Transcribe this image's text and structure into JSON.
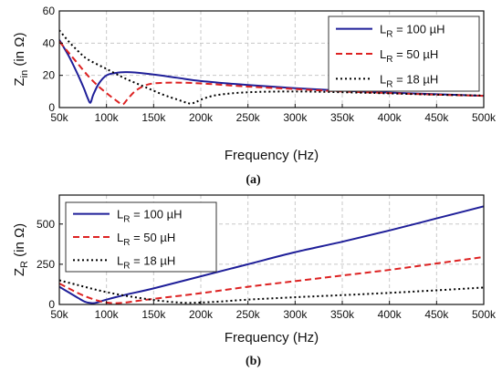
{
  "chart_data": [
    {
      "type": "line",
      "caption": "(a)",
      "xlabel": "Frequency (Hz)",
      "ylabel": {
        "main": "Z",
        "sub": "in",
        "rest": " (in Ω)"
      },
      "xlim": [
        50000,
        500000
      ],
      "ylim": [
        0,
        60
      ],
      "xticks": [
        50000,
        100000,
        150000,
        200000,
        250000,
        300000,
        350000,
        400000,
        450000,
        500000
      ],
      "xtick_labels": [
        "50k",
        "100k",
        "150k",
        "200k",
        "250k",
        "300k",
        "350k",
        "400k",
        "450k",
        "500k"
      ],
      "yticks": [
        0,
        20,
        40,
        60
      ],
      "ytick_labels": [
        "0",
        "20",
        "40",
        "60"
      ],
      "grid": true,
      "legend_position": "top-right",
      "series": [
        {
          "name": "L_R = 100 µH",
          "label_main": "L",
          "label_sub": "R",
          "label_rest": " = 100 µH",
          "color": "#1f1f99",
          "dash": "solid",
          "x": [
            50000,
            60000,
            70000,
            76000,
            80000,
            83000,
            86000,
            92000,
            100000,
            110000,
            120000,
            130000,
            150000,
            175000,
            200000,
            250000,
            300000,
            350000,
            400000,
            450000,
            500000
          ],
          "y": [
            42,
            32,
            20,
            12,
            6,
            3,
            8,
            15,
            20,
            21.5,
            22,
            21.8,
            20.5,
            18.5,
            16.5,
            14,
            12,
            10.5,
            9.3,
            8.3,
            7.3
          ]
        },
        {
          "name": "L_R = 50 µH",
          "label_main": "L",
          "label_sub": "R",
          "label_rest": " = 50 µH",
          "color": "#dd2222",
          "dash": "dashed",
          "x": [
            50000,
            60000,
            70000,
            80000,
            90000,
            100000,
            110000,
            117000,
            122000,
            130000,
            140000,
            150000,
            170000,
            200000,
            250000,
            300000,
            350000,
            400000,
            450000,
            500000
          ],
          "y": [
            41,
            34,
            27,
            20,
            14,
            9,
            4.5,
            2,
            5,
            10,
            13.5,
            15,
            15.5,
            15,
            13,
            11.5,
            10,
            9,
            8,
            7.3
          ]
        },
        {
          "name": "L_R = 18 µH",
          "label_main": "L",
          "label_sub": "R",
          "label_rest": " = 18 µH",
          "color": "#000000",
          "dash": "dotted",
          "x": [
            50000,
            60000,
            70000,
            80000,
            100000,
            120000,
            140000,
            160000,
            175000,
            185000,
            190000,
            195000,
            205000,
            220000,
            250000,
            300000,
            350000,
            400000,
            450000,
            500000
          ],
          "y": [
            48,
            41,
            35,
            30,
            24,
            18,
            13,
            8,
            5,
            3,
            2.5,
            3.5,
            6,
            8,
            9.5,
            10,
            9.5,
            8.8,
            8,
            7.5
          ]
        }
      ]
    },
    {
      "type": "line",
      "caption": "(b)",
      "xlabel": "Frequency (Hz)",
      "ylabel": {
        "main": "Z",
        "sub": "R",
        "rest": " (in Ω)"
      },
      "xlim": [
        50000,
        500000
      ],
      "ylim": [
        0,
        680
      ],
      "xticks": [
        50000,
        100000,
        150000,
        200000,
        250000,
        300000,
        350000,
        400000,
        450000,
        500000
      ],
      "xtick_labels": [
        "50k",
        "100k",
        "150k",
        "200k",
        "250k",
        "300k",
        "350k",
        "400k",
        "450k",
        "500k"
      ],
      "yticks": [
        0,
        250,
        500
      ],
      "ytick_labels": [
        "0",
        "250",
        "500"
      ],
      "grid": true,
      "legend_position": "top-left",
      "series": [
        {
          "name": "L_R = 100 µH",
          "label_main": "L",
          "label_sub": "R",
          "label_rest": " = 100 µH",
          "color": "#1f1f99",
          "dash": "solid",
          "x": [
            50000,
            60000,
            70000,
            78000,
            85000,
            90000,
            100000,
            120000,
            150000,
            200000,
            250000,
            300000,
            350000,
            400000,
            450000,
            500000
          ],
          "y": [
            110,
            75,
            40,
            15,
            8,
            12,
            30,
            60,
            100,
            175,
            250,
            325,
            390,
            460,
            535,
            610
          ]
        },
        {
          "name": "L_R = 50 µH",
          "label_main": "L",
          "label_sub": "R",
          "label_rest": " = 50 µH",
          "color": "#dd2222",
          "dash": "dashed",
          "x": [
            50000,
            60000,
            70000,
            80000,
            90000,
            100000,
            110000,
            120000,
            130000,
            150000,
            200000,
            250000,
            300000,
            350000,
            400000,
            450000,
            500000
          ],
          "y": [
            130,
            100,
            70,
            45,
            25,
            12,
            8,
            12,
            20,
            35,
            70,
            110,
            145,
            180,
            215,
            255,
            295
          ]
        },
        {
          "name": "L_R = 18 µH",
          "label_main": "L",
          "label_sub": "R",
          "label_rest": " = 18 µH",
          "color": "#000000",
          "dash": "dotted",
          "x": [
            50000,
            70000,
            90000,
            110000,
            130000,
            150000,
            170000,
            185000,
            200000,
            220000,
            250000,
            300000,
            350000,
            400000,
            450000,
            500000
          ],
          "y": [
            150,
            120,
            90,
            65,
            45,
            28,
            15,
            10,
            12,
            18,
            30,
            45,
            58,
            72,
            88,
            105
          ]
        }
      ]
    }
  ]
}
